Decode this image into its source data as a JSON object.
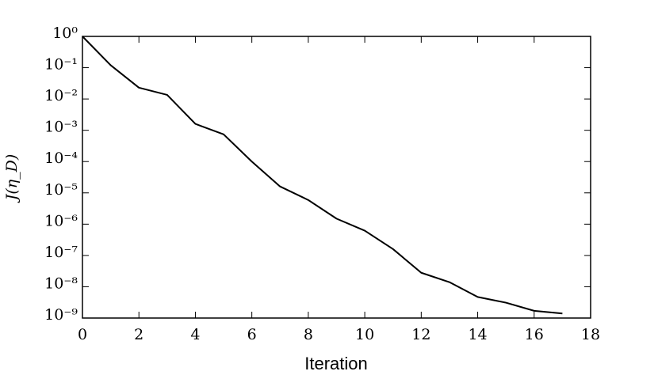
{
  "chart_data": {
    "type": "line",
    "xlabel": "Iteration",
    "ylabel": "J(η_D)",
    "x": [
      0,
      1,
      2,
      3,
      4,
      5,
      6,
      7,
      8,
      9,
      10,
      11,
      12,
      13,
      14,
      15,
      16,
      17
    ],
    "values": [
      1,
      0.12,
      0.023,
      0.0135,
      0.0016,
      0.00074,
      0.0001,
      1.6e-05,
      5.9e-06,
      1.5e-06,
      6.2e-07,
      1.6e-07,
      2.8e-08,
      1.4e-08,
      4.7e-09,
      3.1e-09,
      1.7e-09,
      1.4e-09
    ],
    "color": "#000000",
    "log_y": true,
    "xlim": [
      0,
      18
    ],
    "xticks": [
      0,
      2,
      4,
      6,
      8,
      10,
      12,
      14,
      16,
      18
    ],
    "ylim": [
      1e-09,
      1
    ],
    "yticks": [
      {
        "value": 1e-09,
        "label": "10⁻⁹"
      },
      {
        "value": 1e-08,
        "label": "10⁻⁸"
      },
      {
        "value": 1e-07,
        "label": "10⁻⁷"
      },
      {
        "value": 1e-06,
        "label": "10⁻⁶"
      },
      {
        "value": 1e-05,
        "label": "10⁻⁵"
      },
      {
        "value": 0.0001,
        "label": "10⁻⁴"
      },
      {
        "value": 0.001,
        "label": "10⁻³"
      },
      {
        "value": 0.01,
        "label": "10⁻²"
      },
      {
        "value": 0.1,
        "label": "10⁻¹"
      },
      {
        "value": 1,
        "label": "10⁰"
      }
    ]
  }
}
